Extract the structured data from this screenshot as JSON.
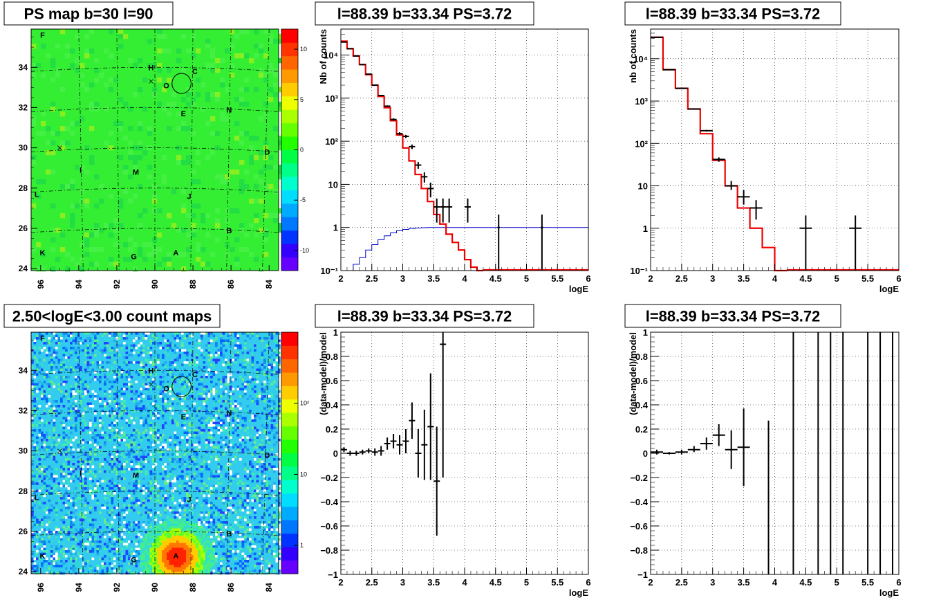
{
  "colors": {
    "frame": "#000000",
    "map_green": "#33ee33",
    "model_red": "#ee0000",
    "model_blue": "#0000cc",
    "data_black": "#000000",
    "palette": [
      "#6600ff",
      "#3300ff",
      "#0033ff",
      "#0077ff",
      "#00aaff",
      "#00ddff",
      "#00ffcc",
      "#00ff88",
      "#00ff44",
      "#22ff00",
      "#66ff00",
      "#aaff00",
      "#eeff00",
      "#ffcc00",
      "#ff9900",
      "#ff6600",
      "#ff3300",
      "#ff0000"
    ]
  },
  "map_common": {
    "x_range": [
      96.5,
      83.5
    ],
    "y_range": [
      23.9,
      35.9
    ],
    "x_ticks": [
      "96",
      "94",
      "92",
      "90",
      "88",
      "86",
      "84"
    ],
    "y_ticks": [
      "24",
      "26",
      "28",
      "30",
      "32",
      "34"
    ],
    "sources": [
      {
        "label": "F",
        "l": 95.9,
        "b": 35.6
      },
      {
        "label": "H",
        "l": 90.2,
        "b": 34.0
      },
      {
        "label": "C",
        "l": 87.9,
        "b": 33.8
      },
      {
        "label": "O",
        "l": 89.4,
        "b": 33.1
      },
      {
        "label": "E",
        "l": 88.5,
        "b": 31.7
      },
      {
        "label": "N",
        "l": 86.1,
        "b": 31.9
      },
      {
        "label": "D",
        "l": 84.1,
        "b": 29.8
      },
      {
        "label": "I",
        "l": 93.9,
        "b": 28.9
      },
      {
        "label": "M",
        "l": 91.0,
        "b": 28.8
      },
      {
        "label": "L",
        "l": 96.2,
        "b": 27.7
      },
      {
        "label": "J",
        "l": 88.2,
        "b": 27.6
      },
      {
        "label": "B",
        "l": 86.1,
        "b": 25.9
      },
      {
        "label": "K",
        "l": 95.9,
        "b": 24.8
      },
      {
        "label": "A",
        "l": 88.9,
        "b": 24.8
      },
      {
        "label": "G",
        "l": 91.1,
        "b": 24.6
      }
    ],
    "crosses": [
      {
        "l": 90.2,
        "b": 33.3
      },
      {
        "l": 95.0,
        "b": 30.0
      }
    ],
    "circle": {
      "l": 88.6,
      "b": 33.2,
      "r": 0.5
    }
  },
  "ps_map": {
    "title": "PS map b=30 l=90",
    "palette_labels": [
      "10",
      "5",
      "0",
      "-5",
      "-10"
    ],
    "palette_values": [
      10,
      5,
      0,
      -5,
      -10
    ],
    "palette_range": [
      -12,
      12
    ]
  },
  "count_map": {
    "title": "2.50<logE<3.00 count maps",
    "palette_labels": [
      "10²",
      "10",
      "1"
    ],
    "palette_values": [
      100,
      10,
      1
    ],
    "palette_log_range": [
      0.4,
      1000
    ]
  },
  "chart_data": [
    {
      "type": "line",
      "panel": "spectrum-1",
      "title": "l=88.39 b=33.34 PS=3.72",
      "xlabel": "logE",
      "ylabel": "Nb of counts",
      "xlim": [
        2,
        6
      ],
      "ylim": [
        0.1,
        40000
      ],
      "y_scale": "log",
      "grid": true,
      "x_ticks": [
        {
          "v": 2,
          "t": "2"
        },
        {
          "v": 2.5,
          "t": "2.5"
        },
        {
          "v": 3,
          "t": "3"
        },
        {
          "v": 3.5,
          "t": "3.5"
        },
        {
          "v": 4,
          "t": "4"
        },
        {
          "v": 4.5,
          "t": "4.5"
        },
        {
          "v": 5,
          "t": "5"
        },
        {
          "v": 5.5,
          "t": "5.5"
        },
        {
          "v": 6,
          "t": "6"
        }
      ],
      "y_ticks": [
        {
          "v": 0.1,
          "t": "10⁻¹"
        },
        {
          "v": 1,
          "t": "1"
        },
        {
          "v": 10,
          "t": "10"
        },
        {
          "v": 100,
          "t": "10²"
        },
        {
          "v": 1000,
          "t": "10³"
        },
        {
          "v": 10000,
          "t": "10⁴"
        }
      ],
      "x_grid": [
        2.5,
        3,
        3.5,
        4,
        4.5,
        5,
        5.5
      ],
      "y_grid": [
        1,
        10,
        100,
        1000,
        10000
      ],
      "model_red": {
        "edges": [
          2.0,
          2.1,
          2.2,
          2.3,
          2.4,
          2.5,
          2.6,
          2.7,
          2.8,
          2.9,
          3.0,
          3.1,
          3.2,
          3.3,
          3.4,
          3.5,
          3.6,
          3.7,
          3.8,
          3.9,
          4.0,
          4.1,
          4.2,
          4.3
        ],
        "values": [
          21000,
          14000,
          9500,
          6000,
          3500,
          2000,
          1100,
          600,
          300,
          140,
          70,
          35,
          17,
          8,
          4,
          2,
          1.2,
          0.7,
          0.45,
          0.3,
          0.18,
          0.12,
          0.1
        ]
      },
      "model_blue": {
        "edges": [
          2.0,
          2.1,
          2.2,
          2.3,
          2.4,
          2.5,
          2.6,
          2.7,
          2.8,
          2.9,
          3.0,
          3.1,
          3.2,
          3.3,
          3.4,
          3.5,
          3.6,
          3.7,
          3.8,
          3.9,
          4.0,
          6.0
        ],
        "values": [
          0.07,
          0.1,
          0.14,
          0.2,
          0.3,
          0.4,
          0.52,
          0.64,
          0.75,
          0.84,
          0.9,
          0.95,
          0.97,
          0.99,
          1,
          1,
          1,
          1,
          1,
          1,
          1
        ]
      },
      "data_points": [
        {
          "x": 2.05,
          "y": 20000,
          "xerr": 0.05,
          "ylo": 19800,
          "yhi": 20200
        },
        {
          "x": 2.15,
          "y": 14000,
          "xerr": 0.05,
          "ylo": 13800,
          "yhi": 14200
        },
        {
          "x": 2.25,
          "y": 9500,
          "xerr": 0.05,
          "ylo": 9300,
          "yhi": 9700
        },
        {
          "x": 2.35,
          "y": 6000,
          "xerr": 0.05,
          "ylo": 5900,
          "yhi": 6100
        },
        {
          "x": 2.45,
          "y": 3600,
          "xerr": 0.05,
          "ylo": 3500,
          "yhi": 3700
        },
        {
          "x": 2.55,
          "y": 2000,
          "xerr": 0.05,
          "ylo": 1950,
          "yhi": 2050
        },
        {
          "x": 2.65,
          "y": 1150,
          "xerr": 0.05,
          "ylo": 1110,
          "yhi": 1190
        },
        {
          "x": 2.75,
          "y": 650,
          "xerr": 0.05,
          "ylo": 620,
          "yhi": 680
        },
        {
          "x": 2.85,
          "y": 320,
          "xerr": 0.05,
          "ylo": 300,
          "yhi": 340
        },
        {
          "x": 2.95,
          "y": 150,
          "xerr": 0.05,
          "ylo": 138,
          "yhi": 162
        },
        {
          "x": 3.05,
          "y": 130,
          "xerr": 0.05,
          "ylo": 119,
          "yhi": 141
        },
        {
          "x": 3.15,
          "y": 75,
          "xerr": 0.05,
          "ylo": 66,
          "yhi": 84
        },
        {
          "x": 3.25,
          "y": 28,
          "xerr": 0.05,
          "ylo": 23,
          "yhi": 33
        },
        {
          "x": 3.35,
          "y": 15,
          "xerr": 0.05,
          "ylo": 11,
          "yhi": 19
        },
        {
          "x": 3.45,
          "y": 8,
          "xerr": 0.05,
          "ylo": 5,
          "yhi": 11
        },
        {
          "x": 3.55,
          "y": 3,
          "xerr": 0.05,
          "ylo": 1.3,
          "yhi": 4.7
        },
        {
          "x": 3.65,
          "y": 3,
          "xerr": 0.05,
          "ylo": 1.3,
          "yhi": 4.7
        },
        {
          "x": 3.75,
          "y": 3,
          "xerr": 0.05,
          "ylo": 1.3,
          "yhi": 4.7
        },
        {
          "x": 4.05,
          "y": 3,
          "xerr": 0.05,
          "ylo": 1.3,
          "yhi": 4.7
        },
        {
          "x": 4.55,
          "y": 1,
          "xerr": 0.02,
          "ylo": 0.1,
          "yhi": 2
        },
        {
          "x": 5.25,
          "y": 1,
          "xerr": 0.02,
          "ylo": 0.1,
          "yhi": 2
        }
      ]
    },
    {
      "type": "line",
      "panel": "spectrum-2",
      "title": "l=88.39 b=33.34 PS=3.72",
      "xlabel": "logE",
      "ylabel": "nb of counts",
      "xlim": [
        2,
        6
      ],
      "ylim": [
        0.1,
        50000
      ],
      "y_scale": "log",
      "grid": true,
      "x_ticks": [
        {
          "v": 2,
          "t": "2"
        },
        {
          "v": 2.5,
          "t": "2.5"
        },
        {
          "v": 3,
          "t": "3"
        },
        {
          "v": 3.5,
          "t": "3.5"
        },
        {
          "v": 4,
          "t": "4"
        },
        {
          "v": 4.5,
          "t": "4.5"
        },
        {
          "v": 5,
          "t": "5"
        },
        {
          "v": 5.5,
          "t": "5.5"
        },
        {
          "v": 6,
          "t": "6"
        }
      ],
      "y_ticks": [
        {
          "v": 0.1,
          "t": "10⁻¹"
        },
        {
          "v": 1,
          "t": "1"
        },
        {
          "v": 10,
          "t": "10"
        },
        {
          "v": 100,
          "t": "10²"
        },
        {
          "v": 1000,
          "t": "10³"
        },
        {
          "v": 10000,
          "t": "10⁴"
        }
      ],
      "x_grid": [
        2.5,
        3,
        3.5,
        4,
        4.5,
        5,
        5.5
      ],
      "y_grid": [
        1,
        10,
        100,
        1000,
        10000
      ],
      "model_red": {
        "edges": [
          2.0,
          2.2,
          2.4,
          2.6,
          2.8,
          3.0,
          3.2,
          3.4,
          3.6,
          3.8,
          4.0,
          4.2
        ],
        "values": [
          32000,
          5500,
          2000,
          650,
          170,
          40,
          10,
          3,
          1,
          0.35,
          0.1
        ]
      },
      "data_points": [
        {
          "x": 2.1,
          "y": 32000,
          "xerr": 0.1,
          "ylo": 31500,
          "yhi": 32500
        },
        {
          "x": 2.3,
          "y": 5500,
          "xerr": 0.1,
          "ylo": 5400,
          "yhi": 5600
        },
        {
          "x": 2.5,
          "y": 2000,
          "xerr": 0.1,
          "ylo": 1950,
          "yhi": 2050
        },
        {
          "x": 2.7,
          "y": 650,
          "xerr": 0.1,
          "ylo": 630,
          "yhi": 670
        },
        {
          "x": 2.9,
          "y": 200,
          "xerr": 0.1,
          "ylo": 190,
          "yhi": 210
        },
        {
          "x": 3.1,
          "y": 42,
          "xerr": 0.1,
          "ylo": 37,
          "yhi": 47
        },
        {
          "x": 3.3,
          "y": 10,
          "xerr": 0.1,
          "ylo": 8,
          "yhi": 13
        },
        {
          "x": 3.5,
          "y": 5.5,
          "xerr": 0.1,
          "ylo": 3.6,
          "yhi": 8
        },
        {
          "x": 3.7,
          "y": 3,
          "xerr": 0.1,
          "ylo": 1.6,
          "yhi": 4.6
        },
        {
          "x": 4.5,
          "y": 1,
          "xerr": 0.1,
          "ylo": 0.1,
          "yhi": 2
        },
        {
          "x": 5.3,
          "y": 1,
          "xerr": 0.1,
          "ylo": 0.1,
          "yhi": 2
        }
      ]
    },
    {
      "type": "scatter",
      "panel": "residual-1",
      "title": "l=88.39 b=33.34 PS=3.72",
      "xlabel": "logE",
      "ylabel": "(data-model)/model",
      "xlim": [
        2,
        6
      ],
      "ylim": [
        -1,
        1
      ],
      "y_scale": "linear",
      "grid": true,
      "x_ticks": [
        {
          "v": 2,
          "t": "2"
        },
        {
          "v": 2.5,
          "t": "2.5"
        },
        {
          "v": 3,
          "t": "3"
        },
        {
          "v": 3.5,
          "t": "3.5"
        },
        {
          "v": 4,
          "t": "4"
        },
        {
          "v": 4.5,
          "t": "4.5"
        },
        {
          "v": 5,
          "t": "5"
        },
        {
          "v": 5.5,
          "t": "5.5"
        },
        {
          "v": 6,
          "t": "6"
        }
      ],
      "y_ticks": [
        {
          "v": -1,
          "t": "−1"
        },
        {
          "v": -0.8,
          "t": "−0.8"
        },
        {
          "v": -0.6,
          "t": "−0.6"
        },
        {
          "v": -0.4,
          "t": "−0.4"
        },
        {
          "v": -0.2,
          "t": "−0.2"
        },
        {
          "v": 0,
          "t": "0"
        },
        {
          "v": 0.2,
          "t": "0.2"
        },
        {
          "v": 0.4,
          "t": "0.4"
        },
        {
          "v": 0.6,
          "t": "0.6"
        },
        {
          "v": 0.8,
          "t": "0.8"
        },
        {
          "v": 1,
          "t": "1"
        }
      ],
      "x_grid": [
        2.5,
        3,
        3.5,
        4,
        4.5,
        5,
        5.5
      ],
      "y_grid": [
        -0.8,
        -0.6,
        -0.4,
        -0.2,
        0,
        0.2,
        0.4,
        0.6,
        0.8
      ],
      "data_points": [
        {
          "x": 2.05,
          "y": 0.03,
          "xerr": 0.05,
          "ylo": 0.01,
          "yhi": 0.05
        },
        {
          "x": 2.15,
          "y": 0.0,
          "xerr": 0.05,
          "ylo": -0.02,
          "yhi": 0.02
        },
        {
          "x": 2.25,
          "y": 0.0,
          "xerr": 0.05,
          "ylo": -0.02,
          "yhi": 0.02
        },
        {
          "x": 2.35,
          "y": 0.01,
          "xerr": 0.05,
          "ylo": -0.01,
          "yhi": 0.03
        },
        {
          "x": 2.45,
          "y": 0.02,
          "xerr": 0.05,
          "ylo": 0.0,
          "yhi": 0.04
        },
        {
          "x": 2.55,
          "y": 0.01,
          "xerr": 0.05,
          "ylo": -0.02,
          "yhi": 0.04
        },
        {
          "x": 2.65,
          "y": 0.02,
          "xerr": 0.05,
          "ylo": -0.02,
          "yhi": 0.06
        },
        {
          "x": 2.75,
          "y": 0.08,
          "xerr": 0.05,
          "ylo": 0.03,
          "yhi": 0.13
        },
        {
          "x": 2.85,
          "y": 0.1,
          "xerr": 0.05,
          "ylo": 0.04,
          "yhi": 0.16
        },
        {
          "x": 2.95,
          "y": 0.07,
          "xerr": 0.05,
          "ylo": -0.01,
          "yhi": 0.15
        },
        {
          "x": 3.05,
          "y": 0.1,
          "xerr": 0.05,
          "ylo": 0.0,
          "yhi": 0.2
        },
        {
          "x": 3.15,
          "y": 0.27,
          "xerr": 0.05,
          "ylo": 0.12,
          "yhi": 0.42
        },
        {
          "x": 3.25,
          "y": 0.0,
          "xerr": 0.05,
          "ylo": -0.2,
          "yhi": 0.2
        },
        {
          "x": 3.35,
          "y": 0.07,
          "xerr": 0.05,
          "ylo": -0.22,
          "yhi": 0.36
        },
        {
          "x": 3.45,
          "y": 0.22,
          "xerr": 0.05,
          "ylo": -0.22,
          "yhi": 0.66
        },
        {
          "x": 3.55,
          "y": -0.23,
          "xerr": 0.05,
          "ylo": -0.68,
          "yhi": 0.22
        },
        {
          "x": 3.65,
          "y": 0.9,
          "xerr": 0.05,
          "ylo": -0.2,
          "yhi": 1.0
        }
      ]
    },
    {
      "type": "scatter",
      "panel": "residual-2",
      "title": "l=88.39 b=33.34 PS=3.72",
      "xlabel": "logE",
      "ylabel": "(data-model)/model",
      "xlim": [
        2,
        6
      ],
      "ylim": [
        -1,
        1
      ],
      "y_scale": "linear",
      "grid": true,
      "x_ticks": [
        {
          "v": 2,
          "t": "2"
        },
        {
          "v": 2.5,
          "t": "2.5"
        },
        {
          "v": 3,
          "t": "3"
        },
        {
          "v": 3.5,
          "t": "3.5"
        },
        {
          "v": 4,
          "t": "4"
        },
        {
          "v": 4.5,
          "t": "4.5"
        },
        {
          "v": 5,
          "t": "5"
        },
        {
          "v": 5.5,
          "t": "5.5"
        },
        {
          "v": 6,
          "t": "6"
        }
      ],
      "y_ticks": [
        {
          "v": -1,
          "t": "−1"
        },
        {
          "v": -0.8,
          "t": "−0.8"
        },
        {
          "v": -0.6,
          "t": "−0.6"
        },
        {
          "v": -0.4,
          "t": "−0.4"
        },
        {
          "v": -0.2,
          "t": "−0.2"
        },
        {
          "v": 0,
          "t": "0"
        },
        {
          "v": 0.2,
          "t": "0.2"
        },
        {
          "v": 0.4,
          "t": "0.4"
        },
        {
          "v": 0.6,
          "t": "0.6"
        },
        {
          "v": 0.8,
          "t": "0.8"
        },
        {
          "v": 1,
          "t": "1"
        }
      ],
      "x_grid": [
        2.5,
        3,
        3.5,
        4,
        4.5,
        5,
        5.5
      ],
      "y_grid": [
        -0.8,
        -0.6,
        -0.4,
        -0.2,
        0,
        0.2,
        0.4,
        0.6,
        0.8
      ],
      "data_points": [
        {
          "x": 2.1,
          "y": 0.01,
          "xerr": 0.1,
          "ylo": -0.01,
          "yhi": 0.03
        },
        {
          "x": 2.3,
          "y": 0.0,
          "xerr": 0.1,
          "ylo": -0.01,
          "yhi": 0.01
        },
        {
          "x": 2.5,
          "y": 0.01,
          "xerr": 0.1,
          "ylo": -0.01,
          "yhi": 0.03
        },
        {
          "x": 2.7,
          "y": 0.03,
          "xerr": 0.1,
          "ylo": 0.01,
          "yhi": 0.06
        },
        {
          "x": 2.9,
          "y": 0.08,
          "xerr": 0.1,
          "ylo": 0.03,
          "yhi": 0.13
        },
        {
          "x": 3.1,
          "y": 0.15,
          "xerr": 0.1,
          "ylo": 0.06,
          "yhi": 0.24
        },
        {
          "x": 3.3,
          "y": 0.03,
          "xerr": 0.1,
          "ylo": -0.13,
          "yhi": 0.19
        },
        {
          "x": 3.5,
          "y": 0.05,
          "xerr": 0.1,
          "ylo": -0.27,
          "yhi": 0.37
        },
        {
          "x": 3.9,
          "y": 0.0,
          "xerr": 0.0,
          "ylo": -1.0,
          "yhi": 0.27
        },
        {
          "x": 4.3,
          "y": 0.0,
          "xerr": 0.0,
          "ylo": -1.0,
          "yhi": 1.0
        },
        {
          "x": 4.7,
          "y": 0.0,
          "xerr": 0.0,
          "ylo": -1.0,
          "yhi": 1.0
        },
        {
          "x": 4.9,
          "y": 0.0,
          "xerr": 0.0,
          "ylo": -1.0,
          "yhi": 1.0
        },
        {
          "x": 5.1,
          "y": 0.0,
          "xerr": 0.0,
          "ylo": -1.0,
          "yhi": 1.0
        },
        {
          "x": 5.5,
          "y": 0.0,
          "xerr": 0.0,
          "ylo": -1.0,
          "yhi": 1.0
        },
        {
          "x": 5.7,
          "y": 0.0,
          "xerr": 0.0,
          "ylo": -1.0,
          "yhi": 1.0
        },
        {
          "x": 5.9,
          "y": 0.0,
          "xerr": 0.0,
          "ylo": -1.0,
          "yhi": 1.0
        }
      ]
    }
  ]
}
